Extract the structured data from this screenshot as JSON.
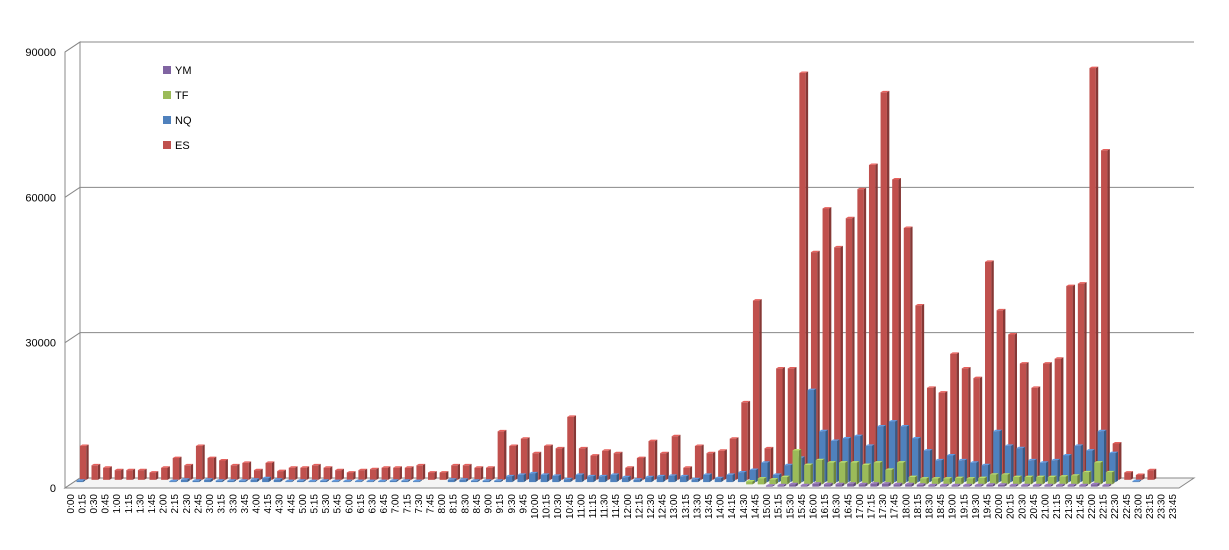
{
  "chart_data": {
    "type": "bar",
    "title": "",
    "xlabel": "",
    "ylabel": "",
    "ylim": [
      0,
      90000
    ],
    "yticks": [
      "0",
      "30000",
      "60000",
      "90000"
    ],
    "grid": true,
    "legend_position": "top-left",
    "categories": [
      "0:00",
      "0:15",
      "0:30",
      "0:45",
      "1:00",
      "1:15",
      "1:30",
      "1:45",
      "2:00",
      "2:15",
      "2:30",
      "2:45",
      "3:00",
      "3:15",
      "3:30",
      "3:45",
      "4:00",
      "4:15",
      "4:30",
      "4:45",
      "5:00",
      "5:15",
      "5:30",
      "5:45",
      "6:00",
      "6:15",
      "6:30",
      "6:45",
      "7:00",
      "7:15",
      "7:30",
      "7:45",
      "8:00",
      "8:15",
      "8:30",
      "8:45",
      "9:00",
      "9:15",
      "9:30",
      "9:45",
      "10:00",
      "10:15",
      "10:30",
      "10:45",
      "11:00",
      "11:15",
      "11:30",
      "11:45",
      "12:00",
      "12:15",
      "12:30",
      "12:45",
      "13:00",
      "13:15",
      "13:30",
      "13:45",
      "14:00",
      "14:15",
      "14:30",
      "14:45",
      "15:00",
      "15:15",
      "15:30",
      "15:45",
      "16:00",
      "16:15",
      "16:30",
      "16:45",
      "17:00",
      "17:15",
      "17:30",
      "17:45",
      "18:00",
      "18:15",
      "18:30",
      "18:45",
      "19:00",
      "19:15",
      "19:30",
      "19:45",
      "20:00",
      "20:15",
      "20:30",
      "20:45",
      "21:00",
      "21:15",
      "21:30",
      "21:45",
      "22:00",
      "22:15",
      "22:30",
      "22:45",
      "23:00",
      "23:15",
      "23:30",
      "23:45"
    ],
    "series": [
      {
        "name": "YM",
        "color": "#8064a2",
        "values": [
          0,
          0,
          0,
          0,
          0,
          0,
          0,
          0,
          0,
          0,
          0,
          0,
          0,
          0,
          0,
          0,
          0,
          0,
          0,
          0,
          0,
          0,
          0,
          0,
          0,
          0,
          0,
          0,
          0,
          0,
          0,
          0,
          0,
          0,
          0,
          0,
          0,
          0,
          0,
          0,
          0,
          0,
          0,
          0,
          0,
          0,
          0,
          0,
          0,
          0,
          0,
          0,
          0,
          0,
          0,
          0,
          0,
          0,
          0,
          0,
          200,
          300,
          500,
          300,
          600,
          500,
          500,
          600,
          500,
          600,
          600,
          500,
          500,
          400,
          300,
          300,
          300,
          300,
          300,
          400,
          400,
          300,
          300,
          300,
          300,
          300,
          300,
          300,
          500,
          300,
          0,
          0,
          0,
          0,
          0,
          0
        ]
      },
      {
        "name": "TF",
        "color": "#9bbb59",
        "values": [
          0,
          0,
          0,
          0,
          0,
          0,
          0,
          0,
          0,
          0,
          0,
          0,
          0,
          0,
          0,
          0,
          0,
          0,
          0,
          0,
          0,
          0,
          0,
          0,
          0,
          0,
          0,
          0,
          0,
          0,
          0,
          0,
          0,
          0,
          0,
          0,
          0,
          0,
          0,
          0,
          0,
          0,
          0,
          0,
          0,
          0,
          0,
          0,
          0,
          0,
          0,
          0,
          0,
          0,
          0,
          0,
          0,
          0,
          600,
          1200,
          1000,
          1500,
          7000,
          4000,
          5000,
          4500,
          4500,
          4500,
          4000,
          4500,
          3000,
          4500,
          1500,
          1200,
          1200,
          1200,
          1300,
          1200,
          1300,
          2000,
          2000,
          1500,
          1500,
          1500,
          1500,
          1600,
          1800,
          2500,
          4500,
          2500,
          0,
          0,
          0,
          0,
          0,
          0
        ]
      },
      {
        "name": "NQ",
        "color": "#4f81bd",
        "values": [
          300,
          0,
          0,
          0,
          0,
          0,
          0,
          0,
          200,
          500,
          300,
          500,
          300,
          300,
          300,
          500,
          800,
          500,
          200,
          300,
          200,
          300,
          200,
          200,
          200,
          200,
          200,
          300,
          300,
          200,
          0,
          0,
          500,
          500,
          300,
          300,
          300,
          1200,
          1500,
          1800,
          1500,
          1300,
          600,
          1500,
          1200,
          1200,
          1500,
          1000,
          500,
          1000,
          1200,
          1300,
          1200,
          600,
          1500,
          800,
          1500,
          2000,
          2500,
          4000,
          1500,
          3500,
          5000,
          19000,
          10500,
          8500,
          9000,
          9500,
          7500,
          11500,
          12500,
          11500,
          9000,
          6500,
          4500,
          5500,
          4500,
          4000,
          3500,
          10500,
          7500,
          7000,
          4500,
          4000,
          4500,
          5500,
          7500,
          6500,
          10500,
          6000,
          0,
          200,
          0,
          0,
          0,
          0
        ]
      },
      {
        "name": "ES",
        "color": "#c0504d",
        "values": [
          7000,
          3000,
          2500,
          2000,
          2000,
          2000,
          1500,
          2500,
          4500,
          3000,
          7000,
          4500,
          4000,
          3000,
          3500,
          2000,
          3500,
          1800,
          2500,
          2500,
          3000,
          2500,
          2000,
          1500,
          2000,
          2200,
          2500,
          2500,
          2500,
          3000,
          1500,
          1500,
          3000,
          3000,
          2500,
          2500,
          10000,
          7000,
          8500,
          5500,
          7000,
          6500,
          13000,
          6500,
          5000,
          6000,
          5500,
          2500,
          4500,
          8000,
          5500,
          9000,
          2500,
          7000,
          5500,
          6000,
          8500,
          16000,
          37000,
          6500,
          23000,
          23000,
          84000,
          47000,
          56000,
          48000,
          54000,
          60000,
          65000,
          80000,
          62000,
          52000,
          36000,
          19000,
          18000,
          26000,
          23000,
          21000,
          45000,
          35000,
          30000,
          24000,
          19000,
          24000,
          25000,
          40000,
          40500,
          85000,
          68000,
          7500,
          1500,
          1000,
          2000,
          0,
          0,
          0
        ]
      }
    ]
  }
}
